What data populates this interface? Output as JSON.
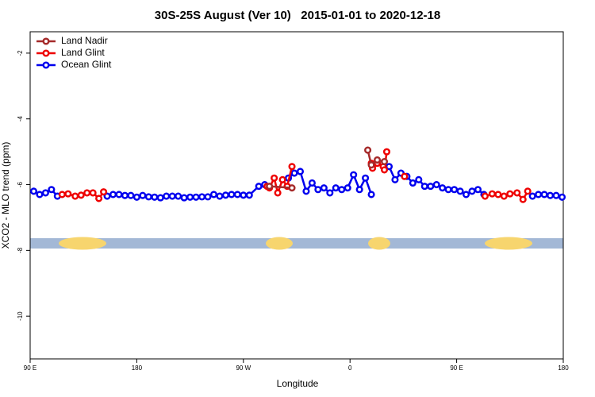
{
  "chart_data": {
    "type": "line",
    "title": "30S-25S August (Ver 10)   2015-01-01 to 2020-12-18",
    "x_label": "Longitude",
    "y_label": "XCO2 - MLO trend (ppm)",
    "xlim": [
      90,
      540
    ],
    "xticks": [
      {
        "value": 90,
        "label": "90 E"
      },
      {
        "value": 180,
        "label": "180"
      },
      {
        "value": 270,
        "label": "90 W"
      },
      {
        "value": 360,
        "label": "0"
      },
      {
        "value": 450,
        "label": "90 E"
      },
      {
        "value": 540,
        "label": "180"
      }
    ],
    "ylim": [
      -11.3,
      -1.35
    ],
    "yticks": [
      -2,
      -4,
      -6,
      -8,
      -10
    ],
    "legend": "top-left",
    "series": [
      {
        "name": "Land Nadir",
        "color": "#a52a2a",
        "x": [
          292,
          311,
          null,
          375,
          378,
          383,
          389
        ],
        "values": [
          -6.05,
          -6.1,
          null,
          -4.95,
          -5.4,
          -5.25,
          -5.3
        ]
      },
      {
        "name": "Land Glint",
        "color": "#ee0000",
        "x": [
          117,
          122,
          128,
          133,
          138,
          143,
          148,
          152,
          null,
          290,
          292,
          296,
          299,
          303,
          307,
          311,
          null,
          378,
          379,
          383,
          388,
          389,
          391,
          null,
          406,
          null,
          474,
          480,
          485,
          490,
          495,
          501,
          506,
          510
        ],
        "values": [
          -6.3,
          -6.28,
          -6.35,
          -6.32,
          -6.25,
          -6.25,
          -6.42,
          -6.22,
          null,
          -6.05,
          -6.1,
          -5.8,
          -6.25,
          -5.85,
          -6.05,
          -5.45,
          null,
          -5.35,
          -5.5,
          -5.35,
          -5.45,
          -5.55,
          -5.0,
          null,
          -5.75,
          null,
          -6.35,
          -6.28,
          -6.3,
          -6.35,
          -6.28,
          -6.25,
          -6.45,
          -6.2
        ]
      },
      {
        "name": "Ocean Glint",
        "color": "#0000ee",
        "x": [
          93,
          98,
          103,
          108,
          113,
          null,
          155,
          160,
          165,
          170,
          175,
          180,
          185,
          190,
          195,
          200,
          205,
          210,
          215,
          220,
          225,
          230,
          235,
          240,
          245,
          250,
          255,
          260,
          265,
          270,
          275,
          283,
          288,
          null,
          308,
          313,
          318,
          323,
          328,
          333,
          338,
          343,
          348,
          353,
          358,
          363,
          368,
          373,
          378,
          null,
          393,
          398,
          403,
          408,
          413,
          418,
          423,
          428,
          433,
          438,
          443,
          448,
          453,
          458,
          463,
          468,
          473,
          null,
          514,
          519,
          524,
          529,
          534,
          539
        ],
        "values": [
          -6.2,
          -6.3,
          -6.25,
          -6.15,
          -6.35,
          null,
          -6.35,
          -6.3,
          -6.3,
          -6.33,
          -6.33,
          -6.38,
          -6.33,
          -6.37,
          -6.38,
          -6.4,
          -6.35,
          -6.35,
          -6.35,
          -6.4,
          -6.38,
          -6.38,
          -6.37,
          -6.37,
          -6.3,
          -6.35,
          -6.32,
          -6.3,
          -6.3,
          -6.32,
          -6.32,
          -6.05,
          -6.0,
          null,
          -5.8,
          -5.65,
          -5.6,
          -6.2,
          -5.95,
          -6.15,
          -6.1,
          -6.25,
          -6.1,
          -6.15,
          -6.1,
          -5.7,
          -6.15,
          -5.8,
          -6.3,
          null,
          -5.45,
          -5.85,
          -5.65,
          -5.75,
          -5.95,
          -5.85,
          -6.05,
          -6.05,
          -6.0,
          -6.1,
          -6.15,
          -6.15,
          -6.2,
          -6.3,
          -6.2,
          -6.15,
          -6.3,
          null,
          -6.35,
          -6.3,
          -6.3,
          -6.33,
          -6.33,
          -6.38
        ]
      }
    ]
  }
}
